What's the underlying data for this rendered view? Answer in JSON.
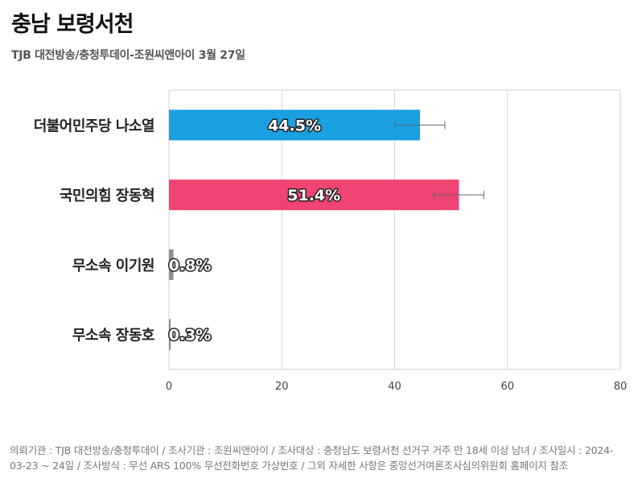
{
  "header": {
    "title": "충남 보령서천",
    "subtitle": "TJB 대전방송/충청투데이-조원씨앤아이 3월 27일"
  },
  "chart_data": {
    "type": "bar",
    "orientation": "horizontal",
    "categories": [
      "더불어민주당 나소열",
      "국민의힘 장동혁",
      "무소속 이기원",
      "무소속 장동호"
    ],
    "values": [
      44.5,
      51.4,
      0.8,
      0.3
    ],
    "value_labels": [
      "44.5%",
      "51.4%",
      "0.8%",
      "0.3%"
    ],
    "colors": [
      "#1aa0e0",
      "#f04472",
      "#8e8e8e",
      "#8e8e8e"
    ],
    "error_bars": [
      4.4,
      4.4,
      0,
      0
    ],
    "xlim": [
      0,
      80
    ],
    "xticks": [
      "0",
      "20",
      "40",
      "60",
      "80"
    ],
    "grid": true
  },
  "footer": {
    "note": "의뢰기관 : TJB 대전방송/충청투데이 / 조사기관 : 조원씨앤아이 / 조사대상 : 충청남도 보령서천 선거구 거주 만 18세 이상 남녀 / 조사일시 : 2024-03-23 ~ 24일 / 조사방식 : 무선 ARS 100% 무선전화번호 가상번호 / 그외 자세한 사항은 중앙선거여론조사심의위원회 홈페이지 참조"
  }
}
